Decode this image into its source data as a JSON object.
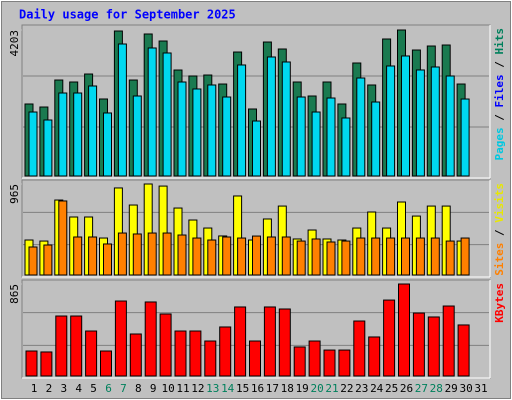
{
  "chart_data": [
    {
      "type": "bar",
      "title": "Daily usage for September 2025",
      "categories": [
        "1",
        "2",
        "3",
        "4",
        "5",
        "6",
        "7",
        "8",
        "9",
        "10",
        "11",
        "12",
        "13",
        "14",
        "15",
        "16",
        "17",
        "18",
        "19",
        "20",
        "21",
        "22",
        "23",
        "24",
        "25",
        "26",
        "27",
        "28",
        "29",
        "30",
        "31"
      ],
      "category_colors": [
        "#000000",
        "#000000",
        "#000000",
        "#000000",
        "#000000",
        "#00805c",
        "#00805c",
        "#000000",
        "#000000",
        "#000000",
        "#000000",
        "#000000",
        "#00805c",
        "#00805c",
        "#000000",
        "#000000",
        "#000000",
        "#000000",
        "#000000",
        "#00805c",
        "#00805c",
        "#000000",
        "#000000",
        "#000000",
        "#000000",
        "#000000",
        "#00805c",
        "#00805c",
        "#000000",
        "#000000",
        "#000000"
      ],
      "legend_labels": [
        {
          "name": "Pages",
          "color": "#00c8e0"
        },
        {
          "name": "Files",
          "color": "#0000ff"
        },
        {
          "name": "Hits",
          "color": "#00805c"
        }
      ],
      "legend_separator": "/",
      "series": [
        {
          "name": "Hits",
          "color": "#1a7a50",
          "values": [
            2073,
            1986,
            2763,
            2706,
            2936,
            2217,
            4174,
            2763,
            4088,
            3886,
            3051,
            2879,
            2907,
            2648,
            3569,
            1929,
            3857,
            3656,
            2706,
            2303,
            2706,
            2073,
            3253,
            2620,
            3944,
            4203,
            3627,
            3742,
            3771,
            2648,
            0
          ]
        },
        {
          "name": "Pages",
          "color": "#00d8f0",
          "values": [
            1842,
            1612,
            2389,
            2389,
            2591,
            1814,
            3800,
            2303,
            3685,
            3541,
            2706,
            2505,
            2620,
            2274,
            3196,
            1583,
            3426,
            3282,
            2274,
            1842,
            2245,
            1670,
            2821,
            2130,
            3167,
            3455,
            3052,
            3138,
            2879,
            2216,
            0
          ]
        }
      ],
      "ylim": [
        0,
        4203
      ],
      "yticks": [
        4203
      ]
    },
    {
      "type": "bar",
      "legend_labels": [
        {
          "name": "Sites",
          "color": "#ff8000"
        },
        {
          "name": "Visits",
          "color": "#e8e800"
        }
      ],
      "legend_separator": "/",
      "series": [
        {
          "name": "Visits",
          "color": "#ffff00",
          "values": [
            371,
            360,
            795,
            615,
            615,
            392,
            923,
            742,
            965,
            943,
            710,
            583,
            498,
            414,
            838,
            371,
            594,
            731,
            382,
            477,
            382,
            371,
            498,
            668,
            498,
            774,
            625,
            731,
            731,
            360,
            0
          ]
        },
        {
          "name": "Sites",
          "color": "#ff8000",
          "values": [
            297,
            318,
            785,
            403,
            403,
            329,
            445,
            435,
            445,
            445,
            424,
            392,
            371,
            403,
            392,
            413,
            403,
            403,
            360,
            382,
            350,
            360,
            392,
            392,
            392,
            392,
            392,
            392,
            360,
            392,
            0
          ]
        }
      ],
      "ylim": [
        0,
        965
      ],
      "yticks": [
        965
      ]
    },
    {
      "type": "bar",
      "legend_labels": [
        {
          "name": "KBytes",
          "color": "#ff0000"
        }
      ],
      "series": [
        {
          "name": "KBytes",
          "color": "#ff0000",
          "values": [
            235,
            226,
            564,
            564,
            423,
            235,
            705,
            395,
            696,
            583,
            423,
            423,
            329,
            461,
            649,
            329,
            649,
            630,
            273,
            329,
            244,
            244,
            517,
            367,
            714,
            865,
            592,
            555,
            658,
            480,
            0
          ]
        }
      ],
      "ylim": [
        0,
        865
      ],
      "yticks": [
        865
      ]
    }
  ]
}
